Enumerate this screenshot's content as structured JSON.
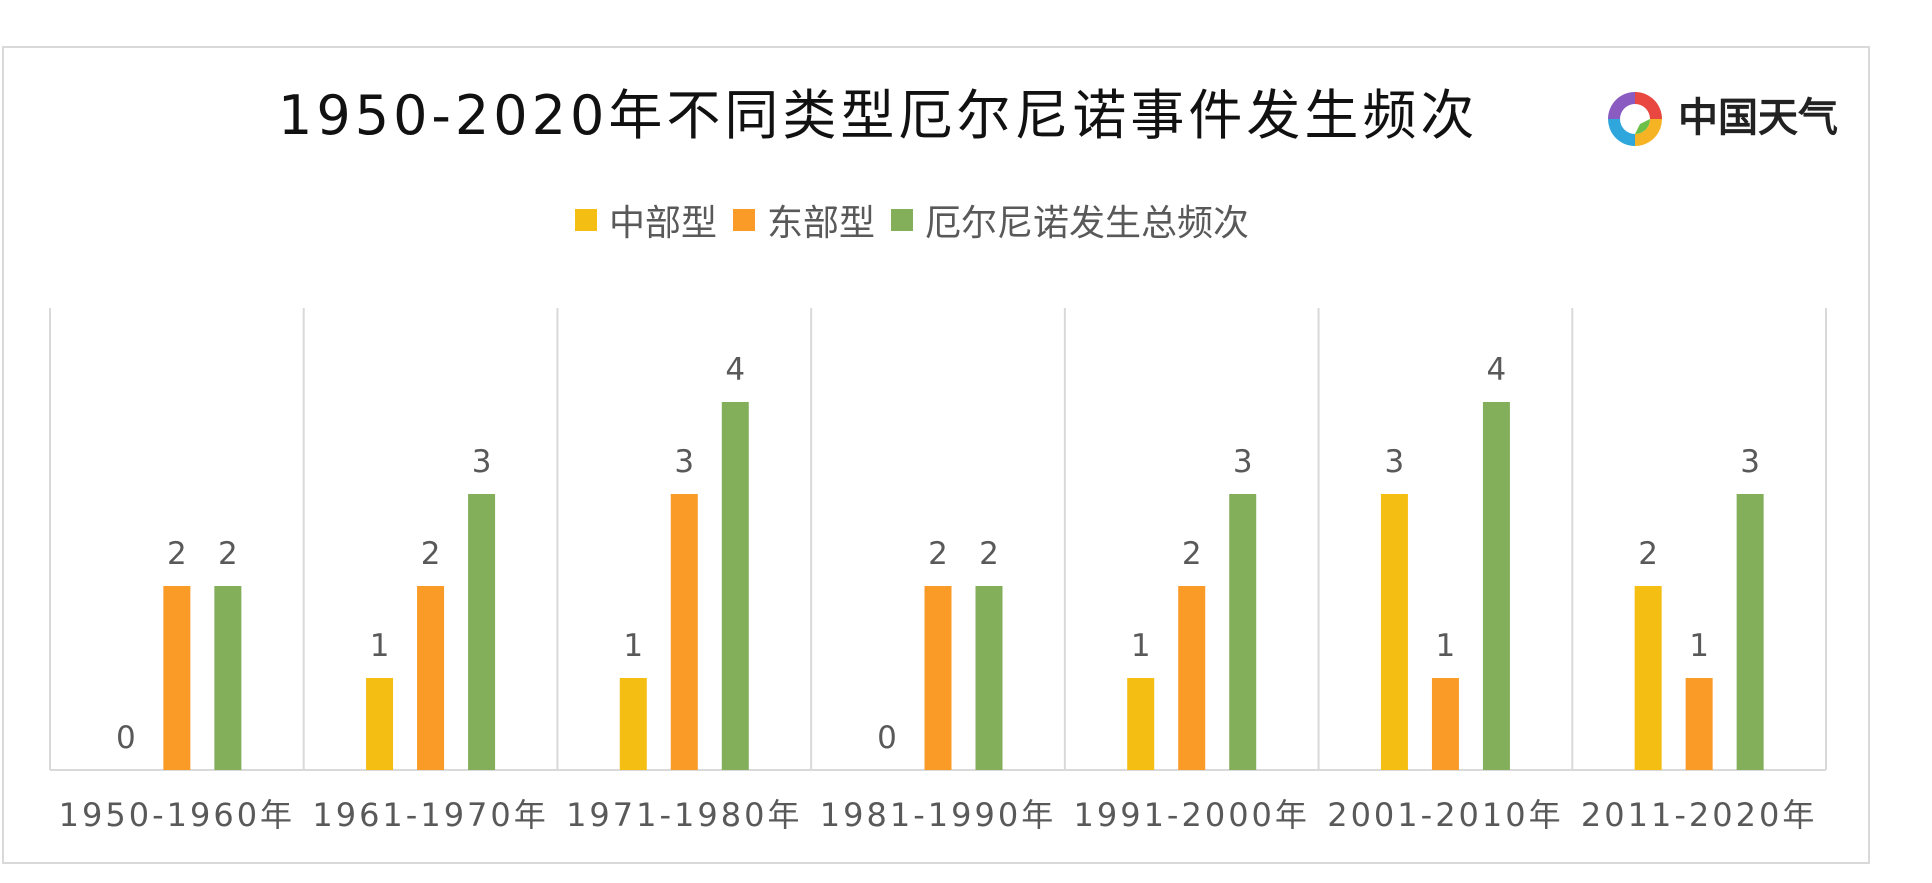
{
  "title": "1950-2020年不同类型厄尔尼诺事件发生频次",
  "brand": {
    "name": "中国天气",
    "icon": "swirl-logo-icon"
  },
  "colors": {
    "central": "#F5BE13",
    "eastern": "#FA9A27",
    "total": "#83AE5A",
    "axis": "#d9d9d9",
    "text": "#595959"
  },
  "chart_data": {
    "type": "bar",
    "title": "1950-2020年不同类型厄尔尼诺事件发生频次",
    "categories": [
      "1950-1960年",
      "1961-1970年",
      "1971-1980年",
      "1981-1990年",
      "1991-2000年",
      "2001-2010年",
      "2011-2020年"
    ],
    "series": [
      {
        "name": "中部型",
        "values": [
          0,
          1,
          1,
          0,
          1,
          3,
          2
        ]
      },
      {
        "name": "东部型",
        "values": [
          2,
          2,
          3,
          2,
          2,
          1,
          1
        ]
      },
      {
        "name": "厄尔尼诺发生总频次",
        "values": [
          2,
          3,
          4,
          2,
          3,
          4,
          3
        ]
      }
    ],
    "ylim": [
      0,
      5
    ],
    "grid": false,
    "legend_position": "top"
  }
}
